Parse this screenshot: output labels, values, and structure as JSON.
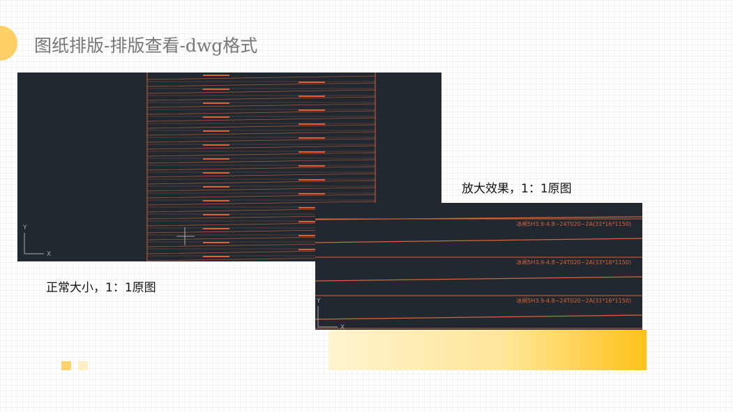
{
  "title": "图纸排版-排版查看-dwg格式",
  "captions": {
    "normal": "正常大小，1：1原图",
    "zoomed": "放大效果，1：1原图"
  },
  "zoomed_labels": [
    "冰闸5H3.9-4.8~24T020~2A(31*16*1150)",
    "冰闸5H3.9-4.8~24T020~2A(33*18*1150)",
    "冰闸5H3.9-4.8~24T020~2A(31*16*1150)"
  ],
  "axis": {
    "y": "Y",
    "x": "X"
  },
  "colors": {
    "accent": "#fdd067",
    "cad_bg": "#212830",
    "cad_line": "#d8643a",
    "square1": "#fcd36a",
    "square2": "#fdeec4"
  }
}
